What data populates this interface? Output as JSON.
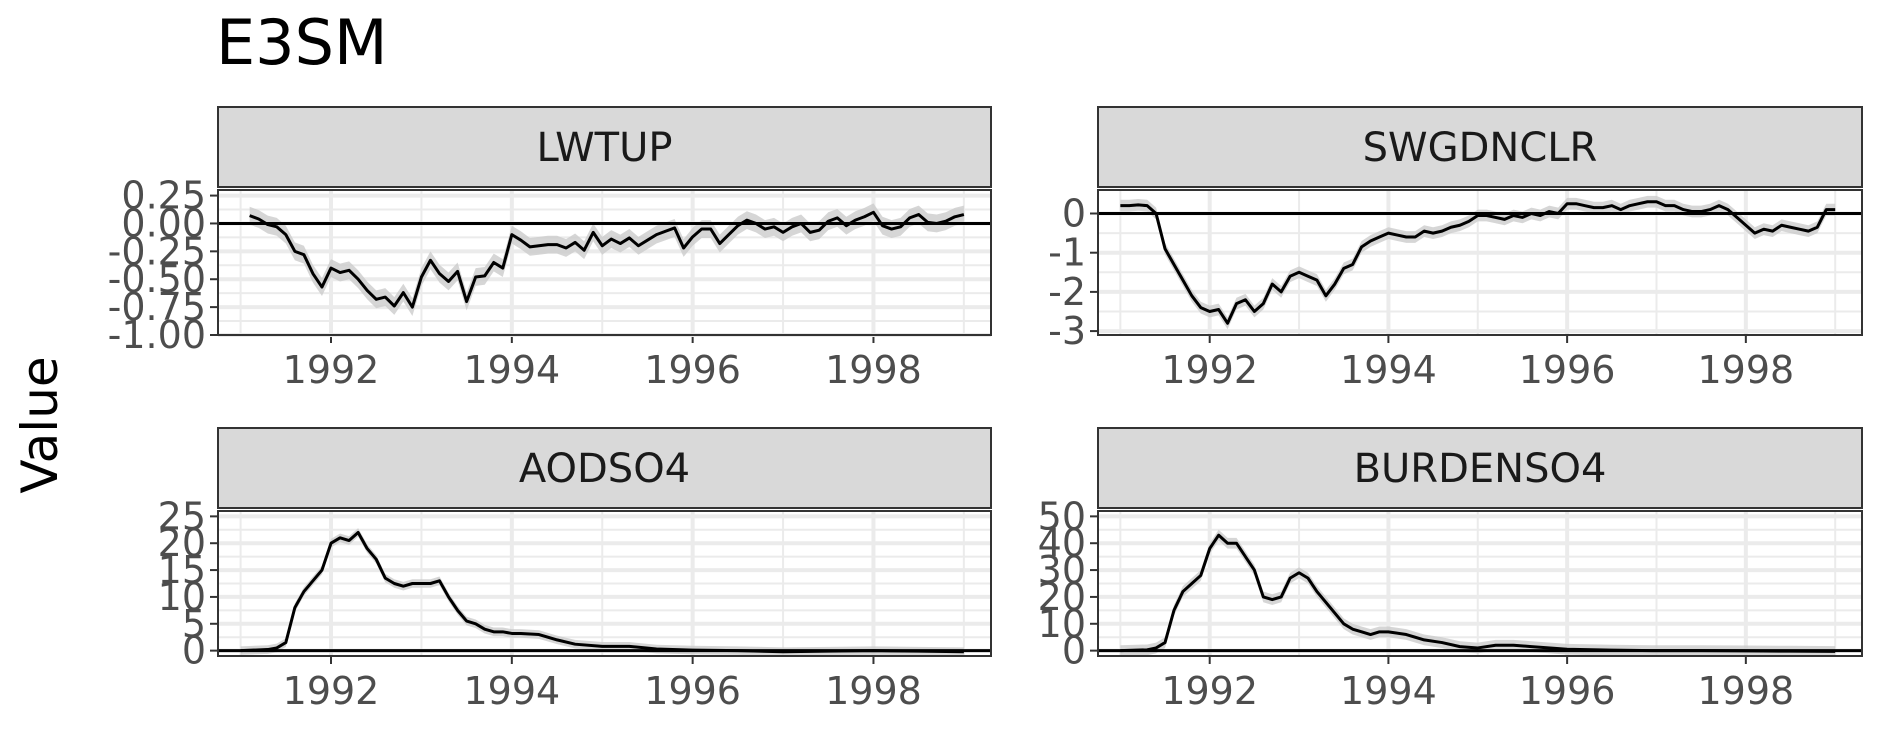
{
  "title": "E3SM",
  "ylabel": "Value",
  "colors": {
    "line": "#000000",
    "ribbon": "#cccccc",
    "strip": "#d9d9d9",
    "grid": "#ebebeb",
    "border": "#333333"
  },
  "chart_data": [
    {
      "type": "line",
      "title": "LWTUP",
      "xlim": [
        1990.75,
        1999.3
      ],
      "ylim": [
        -1.0,
        0.3
      ],
      "xticks": [
        1992,
        1994,
        1996,
        1998
      ],
      "yticks": [
        0.25,
        0.0,
        -0.25,
        -0.5,
        -0.75,
        -1.0
      ],
      "ytick_labels": [
        "0.25",
        "0.00",
        "-0.25",
        "-0.50",
        "-0.75",
        "-1.00"
      ],
      "hline": 0,
      "x": [
        1991.1,
        1991.2,
        1991.3,
        1991.4,
        1991.5,
        1991.6,
        1991.7,
        1991.8,
        1991.9,
        1992.0,
        1992.1,
        1992.2,
        1992.3,
        1992.4,
        1992.5,
        1992.6,
        1992.7,
        1992.8,
        1992.9,
        1993.0,
        1993.1,
        1993.2,
        1993.3,
        1993.4,
        1993.5,
        1993.6,
        1993.7,
        1993.8,
        1993.9,
        1994.0,
        1994.1,
        1994.2,
        1994.3,
        1994.4,
        1994.5,
        1994.6,
        1994.7,
        1994.8,
        1994.9,
        1995.0,
        1995.1,
        1995.2,
        1995.3,
        1995.4,
        1995.5,
        1995.6,
        1995.7,
        1995.8,
        1995.9,
        1996.0,
        1996.1,
        1996.2,
        1996.3,
        1996.4,
        1996.5,
        1996.6,
        1996.7,
        1996.8,
        1996.9,
        1997.0,
        1997.1,
        1997.2,
        1997.3,
        1997.4,
        1997.5,
        1997.6,
        1997.7,
        1997.8,
        1997.9,
        1998.0,
        1998.1,
        1998.2,
        1998.3,
        1998.4,
        1998.5,
        1998.6,
        1998.7,
        1998.8,
        1998.9,
        1999.0
      ],
      "values": [
        0.07,
        0.04,
        -0.01,
        -0.03,
        -0.1,
        -0.25,
        -0.28,
        -0.45,
        -0.57,
        -0.4,
        -0.44,
        -0.42,
        -0.5,
        -0.6,
        -0.68,
        -0.66,
        -0.74,
        -0.62,
        -0.75,
        -0.48,
        -0.33,
        -0.45,
        -0.52,
        -0.43,
        -0.7,
        -0.48,
        -0.47,
        -0.35,
        -0.4,
        -0.1,
        -0.15,
        -0.21,
        -0.2,
        -0.19,
        -0.19,
        -0.22,
        -0.17,
        -0.24,
        -0.08,
        -0.2,
        -0.14,
        -0.18,
        -0.13,
        -0.2,
        -0.15,
        -0.1,
        -0.07,
        -0.04,
        -0.22,
        -0.12,
        -0.05,
        -0.05,
        -0.18,
        -0.1,
        -0.02,
        0.03,
        0.0,
        -0.05,
        -0.03,
        -0.08,
        -0.03,
        0.0,
        -0.08,
        -0.06,
        0.02,
        0.05,
        -0.02,
        0.03,
        0.06,
        0.1,
        -0.02,
        -0.05,
        -0.03,
        0.05,
        0.08,
        0.01,
        0.0,
        0.02,
        0.06,
        0.08
      ],
      "band": 0.08
    },
    {
      "type": "line",
      "title": "SWGDNCLR",
      "xlim": [
        1990.75,
        1999.3
      ],
      "ylim": [
        -3.1,
        0.6
      ],
      "xticks": [
        1992,
        1994,
        1996,
        1998
      ],
      "yticks": [
        0,
        -1,
        -2,
        -3
      ],
      "ytick_labels": [
        "0",
        "-1",
        "-2",
        "-3"
      ],
      "hline": 0,
      "x": [
        1991.0,
        1991.1,
        1991.2,
        1991.3,
        1991.4,
        1991.5,
        1991.6,
        1991.7,
        1991.8,
        1991.9,
        1992.0,
        1992.1,
        1992.2,
        1992.3,
        1992.4,
        1992.5,
        1992.6,
        1992.7,
        1992.8,
        1992.9,
        1993.0,
        1993.1,
        1993.2,
        1993.3,
        1993.4,
        1993.5,
        1993.6,
        1993.7,
        1993.8,
        1993.9,
        1994.0,
        1994.1,
        1994.2,
        1994.3,
        1994.4,
        1994.5,
        1994.6,
        1994.7,
        1994.8,
        1994.9,
        1995.0,
        1995.1,
        1995.2,
        1995.3,
        1995.4,
        1995.5,
        1995.6,
        1995.7,
        1995.8,
        1995.9,
        1996.0,
        1996.1,
        1996.2,
        1996.3,
        1996.4,
        1996.5,
        1996.6,
        1996.7,
        1996.8,
        1996.9,
        1997.0,
        1997.1,
        1997.2,
        1997.3,
        1997.4,
        1997.5,
        1997.6,
        1997.7,
        1997.8,
        1997.9,
        1998.0,
        1998.1,
        1998.2,
        1998.3,
        1998.4,
        1998.5,
        1998.6,
        1998.7,
        1998.8,
        1998.9,
        1999.0
      ],
      "values": [
        0.2,
        0.2,
        0.22,
        0.2,
        0.0,
        -0.9,
        -1.3,
        -1.7,
        -2.1,
        -2.4,
        -2.5,
        -2.45,
        -2.8,
        -2.3,
        -2.2,
        -2.5,
        -2.3,
        -1.8,
        -2.0,
        -1.6,
        -1.5,
        -1.6,
        -1.7,
        -2.1,
        -1.8,
        -1.4,
        -1.3,
        -0.85,
        -0.7,
        -0.6,
        -0.5,
        -0.55,
        -0.6,
        -0.6,
        -0.45,
        -0.5,
        -0.45,
        -0.35,
        -0.3,
        -0.2,
        -0.05,
        -0.05,
        -0.1,
        -0.15,
        -0.05,
        -0.1,
        0.0,
        -0.05,
        0.05,
        0.0,
        0.25,
        0.25,
        0.2,
        0.15,
        0.15,
        0.2,
        0.1,
        0.2,
        0.25,
        0.3,
        0.3,
        0.2,
        0.2,
        0.1,
        0.05,
        0.05,
        0.1,
        0.2,
        0.1,
        -0.1,
        -0.3,
        -0.5,
        -0.4,
        -0.45,
        -0.3,
        -0.35,
        -0.4,
        -0.45,
        -0.35,
        0.1,
        0.1
      ],
      "band": 0.15
    },
    {
      "type": "line",
      "title": "AODSO4",
      "xlim": [
        1990.75,
        1999.3
      ],
      "ylim": [
        -1,
        26
      ],
      "xticks": [
        1992,
        1994,
        1996,
        1998
      ],
      "yticks": [
        25,
        20,
        15,
        10,
        5,
        0
      ],
      "ytick_labels": [
        "25",
        "20",
        "15",
        "10",
        "5",
        "0"
      ],
      "hline": 0,
      "x": [
        1991.0,
        1991.3,
        1991.4,
        1991.5,
        1991.6,
        1991.7,
        1991.8,
        1991.9,
        1992.0,
        1992.1,
        1992.2,
        1992.3,
        1992.4,
        1992.5,
        1992.6,
        1992.7,
        1992.8,
        1992.9,
        1993.0,
        1993.1,
        1993.2,
        1993.3,
        1993.4,
        1993.5,
        1993.6,
        1993.7,
        1993.8,
        1993.9,
        1994.0,
        1994.1,
        1994.3,
        1994.5,
        1994.7,
        1995.0,
        1995.3,
        1995.6,
        1996.0,
        1996.5,
        1997.0,
        1997.5,
        1998.0,
        1998.5,
        1999.0
      ],
      "values": [
        0,
        0.2,
        0.5,
        1.5,
        8,
        11,
        13,
        15,
        20,
        21,
        20.5,
        22,
        19,
        17,
        13.5,
        12.5,
        12,
        12.5,
        12.5,
        12.5,
        13,
        10,
        7.5,
        5.5,
        5,
        4,
        3.5,
        3.5,
        3.2,
        3.2,
        3,
        2,
        1.2,
        0.8,
        0.8,
        0.3,
        0.1,
        0,
        -0.2,
        -0.1,
        0,
        -0.1,
        -0.2
      ],
      "band": 0.8
    },
    {
      "type": "line",
      "title": "BURDENSO4",
      "xlim": [
        1990.75,
        1999.3
      ],
      "ylim": [
        -2,
        52
      ],
      "xticks": [
        1992,
        1994,
        1996,
        1998
      ],
      "yticks": [
        50,
        40,
        30,
        20,
        10,
        0
      ],
      "ytick_labels": [
        "50",
        "40",
        "30",
        "20",
        "10",
        "0"
      ],
      "hline": 0,
      "x": [
        1991.0,
        1991.3,
        1991.4,
        1991.5,
        1991.6,
        1991.7,
        1991.8,
        1991.9,
        1992.0,
        1992.1,
        1992.2,
        1992.3,
        1992.4,
        1992.5,
        1992.6,
        1992.7,
        1992.8,
        1992.9,
        1993.0,
        1993.1,
        1993.2,
        1993.3,
        1993.4,
        1993.5,
        1993.6,
        1993.7,
        1993.8,
        1993.9,
        1994.0,
        1994.2,
        1994.4,
        1994.6,
        1994.8,
        1995.0,
        1995.2,
        1995.4,
        1995.6,
        1996.0,
        1996.5,
        1997.0,
        1997.5,
        1998.0,
        1998.5,
        1999.0
      ],
      "values": [
        0,
        0.3,
        1,
        3,
        15,
        22,
        25,
        28,
        38,
        43,
        40,
        40,
        35,
        30,
        20,
        19,
        20,
        27,
        29,
        27,
        22,
        18,
        14,
        10,
        8,
        7,
        6,
        7,
        7,
        6,
        4,
        3,
        1.5,
        1,
        2,
        2,
        1.5,
        0.5,
        0.2,
        0,
        0,
        -0.1,
        -0.2,
        -0.3
      ],
      "band": 2
    }
  ]
}
